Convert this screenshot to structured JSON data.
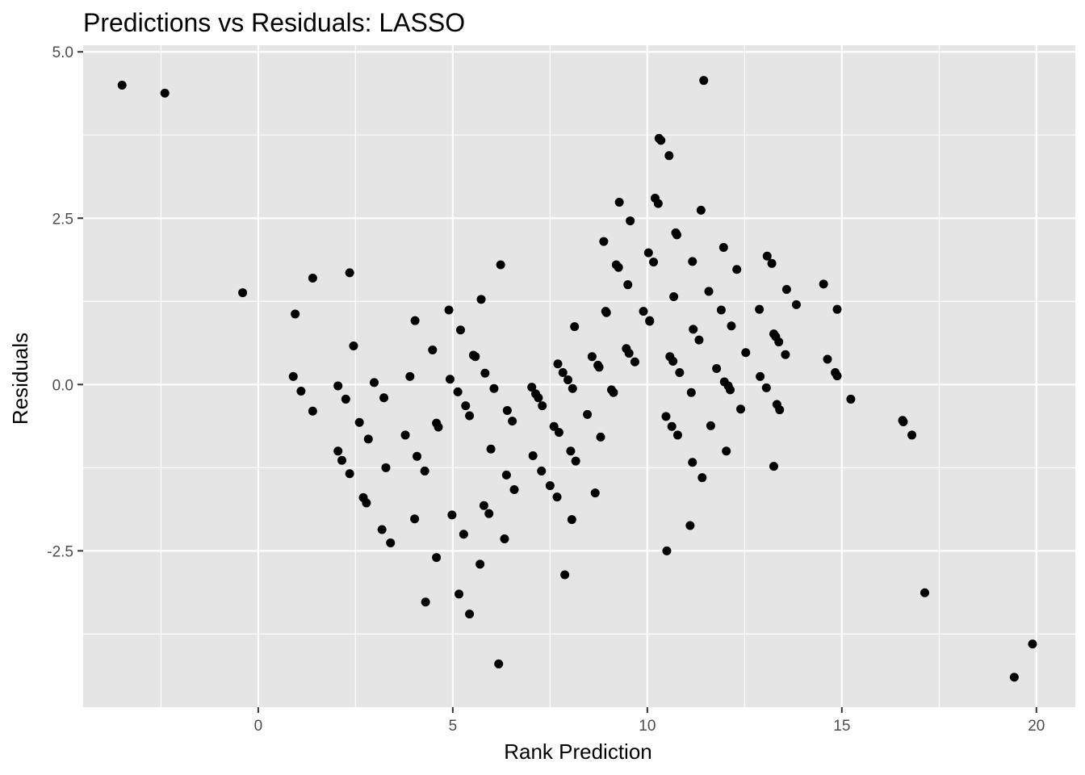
{
  "chart_data": {
    "type": "scatter",
    "title": "Predictions vs Residuals: LASSO",
    "xlabel": "Rank Prediction",
    "ylabel": "Residuals",
    "xlim": [
      -4.5,
      21
    ],
    "ylim": [
      -4.85,
      5.1
    ],
    "x_ticks": [
      0,
      5,
      10,
      15,
      20
    ],
    "x_tick_labels": [
      "0",
      "5",
      "10",
      "15",
      "20"
    ],
    "y_ticks": [
      -2.5,
      0,
      2.5,
      5
    ],
    "y_tick_labels": [
      "-2.5",
      "0.0",
      "2.5",
      "5.0"
    ],
    "x_minor_ticks": [
      -2.5,
      2.5,
      7.5,
      12.5,
      17.5
    ],
    "y_minor_ticks": [
      -3.75,
      -1.25,
      1.25,
      3.75
    ],
    "grid": true,
    "legend": "none",
    "point_color": "#000000",
    "panel_color": "#e5e5e5",
    "grid_color": "#ffffff",
    "points": [
      [
        -3.5,
        4.5
      ],
      [
        -2.4,
        4.38
      ],
      [
        -0.4,
        1.38
      ],
      [
        0.95,
        1.06
      ],
      [
        0.9,
        0.12
      ],
      [
        1.1,
        -0.1
      ],
      [
        1.4,
        -0.4
      ],
      [
        1.4,
        1.6
      ],
      [
        2.05,
        -0.02
      ],
      [
        2.05,
        -1.0
      ],
      [
        2.15,
        -1.14
      ],
      [
        2.25,
        -0.22
      ],
      [
        2.35,
        1.68
      ],
      [
        2.35,
        -1.34
      ],
      [
        2.45,
        0.58
      ],
      [
        2.6,
        -0.57
      ],
      [
        2.7,
        -1.7
      ],
      [
        2.78,
        -1.78
      ],
      [
        2.83,
        -0.82
      ],
      [
        2.98,
        0.03
      ],
      [
        3.18,
        -2.18
      ],
      [
        3.23,
        -0.2
      ],
      [
        3.28,
        -1.25
      ],
      [
        3.4,
        -2.38
      ],
      [
        3.78,
        -0.76
      ],
      [
        3.9,
        0.12
      ],
      [
        4.02,
        -2.02
      ],
      [
        4.03,
        0.96
      ],
      [
        4.08,
        -1.08
      ],
      [
        4.28,
        -1.3
      ],
      [
        4.3,
        -3.27
      ],
      [
        4.48,
        0.52
      ],
      [
        4.58,
        -0.58
      ],
      [
        4.58,
        -2.6
      ],
      [
        4.63,
        -0.64
      ],
      [
        4.9,
        1.12
      ],
      [
        4.93,
        0.08
      ],
      [
        4.98,
        -1.96
      ],
      [
        5.13,
        -0.11
      ],
      [
        5.16,
        -3.15
      ],
      [
        5.2,
        0.82
      ],
      [
        5.28,
        -2.25
      ],
      [
        5.33,
        -0.32
      ],
      [
        5.43,
        -0.47
      ],
      [
        5.43,
        -3.45
      ],
      [
        5.53,
        0.44
      ],
      [
        5.58,
        0.42
      ],
      [
        5.7,
        -2.7
      ],
      [
        5.73,
        1.28
      ],
      [
        5.8,
        -1.82
      ],
      [
        5.83,
        0.17
      ],
      [
        5.93,
        -1.94
      ],
      [
        5.98,
        -0.97
      ],
      [
        6.06,
        -0.06
      ],
      [
        6.18,
        -4.2
      ],
      [
        6.23,
        1.8
      ],
      [
        6.33,
        -2.32
      ],
      [
        6.38,
        -1.36
      ],
      [
        6.4,
        -0.39
      ],
      [
        6.53,
        -0.55
      ],
      [
        6.58,
        -1.58
      ],
      [
        7.03,
        -0.04
      ],
      [
        7.06,
        -1.07
      ],
      [
        7.13,
        -0.14
      ],
      [
        7.2,
        -0.2
      ],
      [
        7.28,
        -1.3
      ],
      [
        7.3,
        -0.32
      ],
      [
        7.5,
        -1.52
      ],
      [
        7.6,
        -0.63
      ],
      [
        7.68,
        -1.69
      ],
      [
        7.7,
        0.31
      ],
      [
        7.73,
        -0.72
      ],
      [
        7.83,
        0.18
      ],
      [
        7.88,
        -2.86
      ],
      [
        7.96,
        0.07
      ],
      [
        8.03,
        -1.0
      ],
      [
        8.06,
        -2.03
      ],
      [
        8.08,
        -0.06
      ],
      [
        8.13,
        0.87
      ],
      [
        8.16,
        -1.15
      ],
      [
        8.46,
        -0.45
      ],
      [
        8.58,
        0.42
      ],
      [
        8.66,
        -1.63
      ],
      [
        8.73,
        0.29
      ],
      [
        8.76,
        0.26
      ],
      [
        8.8,
        -0.79
      ],
      [
        8.88,
        2.15
      ],
      [
        8.93,
        1.1
      ],
      [
        8.95,
        1.08
      ],
      [
        9.08,
        -0.08
      ],
      [
        9.13,
        -0.12
      ],
      [
        9.2,
        1.8
      ],
      [
        9.26,
        1.76
      ],
      [
        9.28,
        2.74
      ],
      [
        9.46,
        0.54
      ],
      [
        9.5,
        1.5
      ],
      [
        9.53,
        0.47
      ],
      [
        9.56,
        2.46
      ],
      [
        9.68,
        0.34
      ],
      [
        9.9,
        1.1
      ],
      [
        10.03,
        1.98
      ],
      [
        10.06,
        0.96
      ],
      [
        10.06,
        0.95
      ],
      [
        10.16,
        1.84
      ],
      [
        10.2,
        2.8
      ],
      [
        10.28,
        2.72
      ],
      [
        10.3,
        3.7
      ],
      [
        10.35,
        3.67
      ],
      [
        10.48,
        -0.48
      ],
      [
        10.5,
        -2.5
      ],
      [
        10.56,
        3.44
      ],
      [
        10.58,
        0.42
      ],
      [
        10.63,
        -0.63
      ],
      [
        10.66,
        0.35
      ],
      [
        10.68,
        1.32
      ],
      [
        10.73,
        2.28
      ],
      [
        10.76,
        2.25
      ],
      [
        10.78,
        -0.76
      ],
      [
        10.83,
        0.18
      ],
      [
        11.1,
        -2.12
      ],
      [
        11.13,
        -0.12
      ],
      [
        11.16,
        1.85
      ],
      [
        11.16,
        -1.17
      ],
      [
        11.18,
        0.83
      ],
      [
        11.33,
        0.67
      ],
      [
        11.38,
        2.62
      ],
      [
        11.41,
        -1.4
      ],
      [
        11.45,
        4.57
      ],
      [
        11.58,
        1.4
      ],
      [
        11.63,
        -0.62
      ],
      [
        11.78,
        0.24
      ],
      [
        11.9,
        1.12
      ],
      [
        11.96,
        2.06
      ],
      [
        11.98,
        0.04
      ],
      [
        12.03,
        -1.0
      ],
      [
        12.08,
        -0.02
      ],
      [
        12.13,
        -0.08
      ],
      [
        12.16,
        0.88
      ],
      [
        12.3,
        1.73
      ],
      [
        12.4,
        -0.37
      ],
      [
        12.53,
        0.48
      ],
      [
        12.88,
        1.13
      ],
      [
        12.9,
        0.12
      ],
      [
        13.06,
        -0.05
      ],
      [
        13.08,
        1.93
      ],
      [
        13.2,
        1.82
      ],
      [
        13.25,
        0.76
      ],
      [
        13.25,
        -1.23
      ],
      [
        13.3,
        0.72
      ],
      [
        13.33,
        -0.3
      ],
      [
        13.38,
        0.64
      ],
      [
        13.4,
        -0.38
      ],
      [
        13.55,
        0.45
      ],
      [
        13.58,
        1.43
      ],
      [
        13.83,
        1.2
      ],
      [
        14.53,
        1.51
      ],
      [
        14.63,
        0.38
      ],
      [
        14.83,
        0.18
      ],
      [
        14.88,
        0.13
      ],
      [
        14.88,
        1.13
      ],
      [
        15.23,
        -0.22
      ],
      [
        16.56,
        -0.54
      ],
      [
        16.58,
        -0.56
      ],
      [
        16.8,
        -0.76
      ],
      [
        17.13,
        -3.13
      ],
      [
        19.43,
        -4.4
      ],
      [
        19.9,
        -3.9
      ]
    ]
  }
}
